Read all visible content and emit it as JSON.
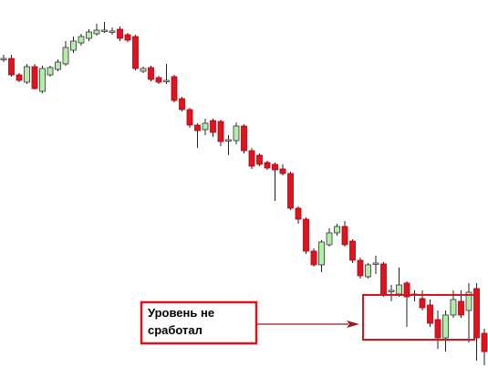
{
  "chart_data": {
    "type": "candlestick",
    "ylim": [
      0,
      403
    ],
    "up_color": "#b4ecaa",
    "down_color": "#e0141e",
    "doji_color": "#e8e8e8",
    "wick_color": "#222222",
    "open": [
      339,
      339,
      321,
      313,
      330,
      303,
      321,
      327,
      333,
      348,
      356,
      361,
      366,
      370,
      369,
      371,
      365,
      363,
      325,
      329,
      318,
      315,
      319,
      295,
      283,
      266,
      261,
      271,
      270,
      250,
      249,
      265,
      238,
      233,
      225,
      223,
      218,
      213,
      175,
      163,
      128,
      113,
      135,
      148,
      155,
      139,
      118,
      100,
      115,
      114,
      85,
      81,
      93,
      81,
      76,
      69,
      53,
      33,
      58,
      73,
      63,
      87,
      38
    ],
    "high": [
      343,
      343,
      323,
      333,
      333,
      331,
      331,
      338,
      358,
      363,
      366,
      371,
      377,
      379,
      373,
      374,
      367,
      365,
      330,
      331,
      320,
      333,
      321,
      297,
      285,
      268,
      273,
      273,
      272,
      255,
      269,
      267,
      241,
      235,
      227,
      225,
      223,
      215,
      177,
      165,
      131,
      140,
      153,
      158,
      161,
      141,
      121,
      115,
      123,
      116,
      91,
      110,
      95,
      85,
      85,
      75,
      63,
      63,
      85,
      85,
      93,
      93,
      43
    ],
    "low": [
      335,
      319,
      313,
      311,
      305,
      301,
      319,
      325,
      331,
      345,
      353,
      358,
      364,
      367,
      365,
      358,
      357,
      326,
      323,
      314,
      311,
      311,
      291,
      281,
      263,
      241,
      255,
      253,
      243,
      233,
      245,
      235,
      218,
      221,
      217,
      183,
      211,
      173,
      158,
      125,
      111,
      105,
      133,
      145,
      133,
      115,
      98,
      98,
      103,
      78,
      73,
      78,
      45,
      73,
      63,
      45,
      21,
      18,
      55,
      55,
      28,
      8,
      3
    ],
    "close": [
      339,
      321,
      315,
      330,
      306,
      328,
      329,
      335,
      351,
      358,
      363,
      368,
      370,
      370,
      369,
      361,
      359,
      328,
      328,
      316,
      313,
      315,
      293,
      283,
      266,
      260,
      268,
      258,
      248,
      250,
      265,
      238,
      221,
      223,
      219,
      217,
      213,
      175,
      163,
      128,
      113,
      138,
      148,
      155,
      135,
      118,
      101,
      113,
      115,
      81,
      85,
      91,
      78,
      81,
      66,
      49,
      33,
      58,
      75,
      58,
      83,
      33,
      18
    ],
    "annotation": [
      "Уровень не",
      "сработал"
    ]
  }
}
